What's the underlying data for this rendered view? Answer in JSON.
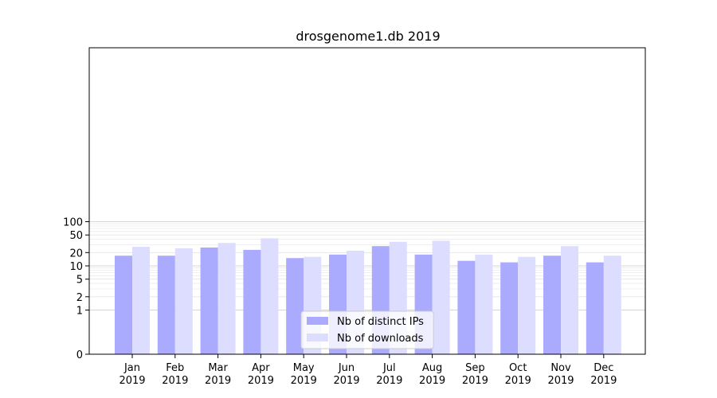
{
  "chart_data": {
    "type": "bar",
    "title": "drosgenome1.db 2019",
    "xlabel": "",
    "ylabel": "",
    "y_scale": "symlog",
    "ylim": [
      0,
      120
    ],
    "y_ticks": [
      0,
      1,
      2,
      5,
      10,
      20,
      50,
      100
    ],
    "grid": "horizontal",
    "legend_position": "bottom-center",
    "categories": [
      "Jan\n2019",
      "Feb\n2019",
      "Mar\n2019",
      "Apr\n2019",
      "May\n2019",
      "Jun\n2019",
      "Jul\n2019",
      "Aug\n2019",
      "Sep\n2019",
      "Oct\n2019",
      "Nov\n2019",
      "Dec\n2019"
    ],
    "series": [
      {
        "name": "Nb of distinct IPs",
        "color": "#aaaaff",
        "values": [
          17,
          17,
          26,
          23,
          15,
          18,
          28,
          18,
          13,
          12,
          17,
          12
        ]
      },
      {
        "name": "Nb of downloads",
        "color": "#ddddff",
        "values": [
          27,
          25,
          33,
          42,
          16,
          22,
          35,
          37,
          18,
          16,
          28,
          17
        ]
      }
    ]
  }
}
